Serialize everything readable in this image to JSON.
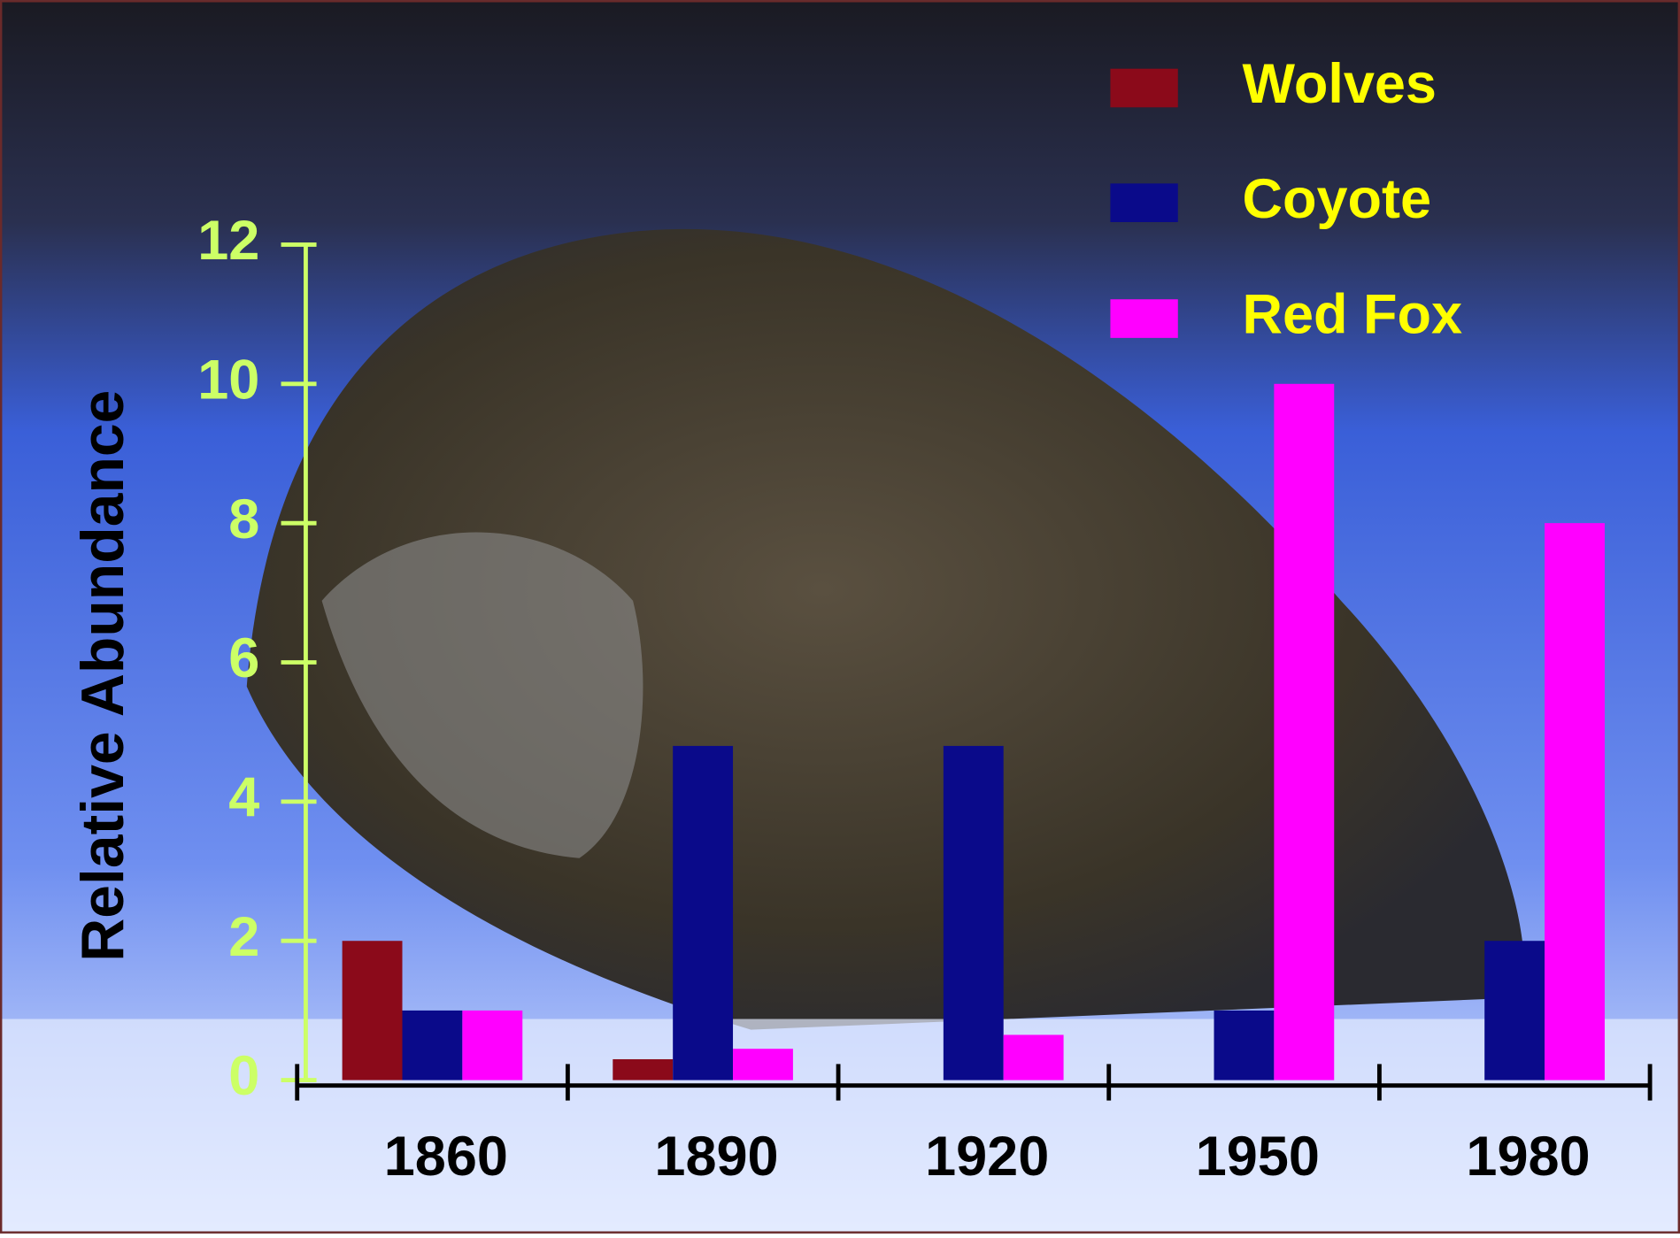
{
  "chart_data": {
    "type": "bar",
    "ylabel": "Relative Abundance",
    "categories": [
      "1860",
      "1890",
      "1920",
      "1950",
      "1980"
    ],
    "series": [
      {
        "name": "Wolves",
        "color": "#8b0a1a",
        "values": [
          2,
          0.3,
          0,
          0,
          0
        ]
      },
      {
        "name": "Coyote",
        "color": "#0a0a8a",
        "values": [
          1,
          4.8,
          4.8,
          1,
          2
        ]
      },
      {
        "name": "Red Fox",
        "color": "#ff00ff",
        "values": [
          1,
          0.45,
          0.65,
          10,
          8
        ]
      }
    ],
    "ylim": [
      0,
      12
    ],
    "yticks": [
      0,
      2,
      4,
      6,
      8,
      10,
      12
    ],
    "legend": "upper right"
  }
}
